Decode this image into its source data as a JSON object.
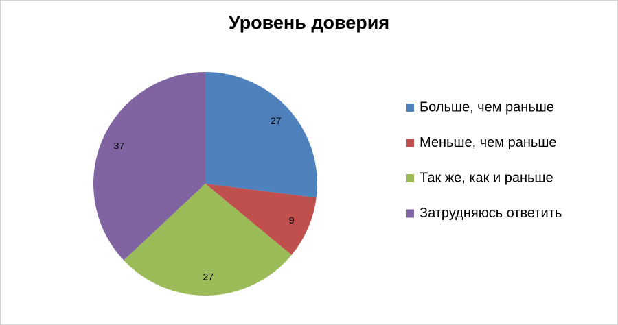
{
  "chart_data": {
    "type": "pie",
    "title": "Уровень доверия",
    "categories": [
      "Больше, чем раньше",
      "Меньше, чем раньше",
      "Так же, как и раньше",
      "Затрудняюсь ответить"
    ],
    "values": [
      27,
      9,
      27,
      37
    ],
    "colors": [
      "#4f81bd",
      "#c0504d",
      "#9bbb59",
      "#8064a2"
    ],
    "legend": "right"
  }
}
